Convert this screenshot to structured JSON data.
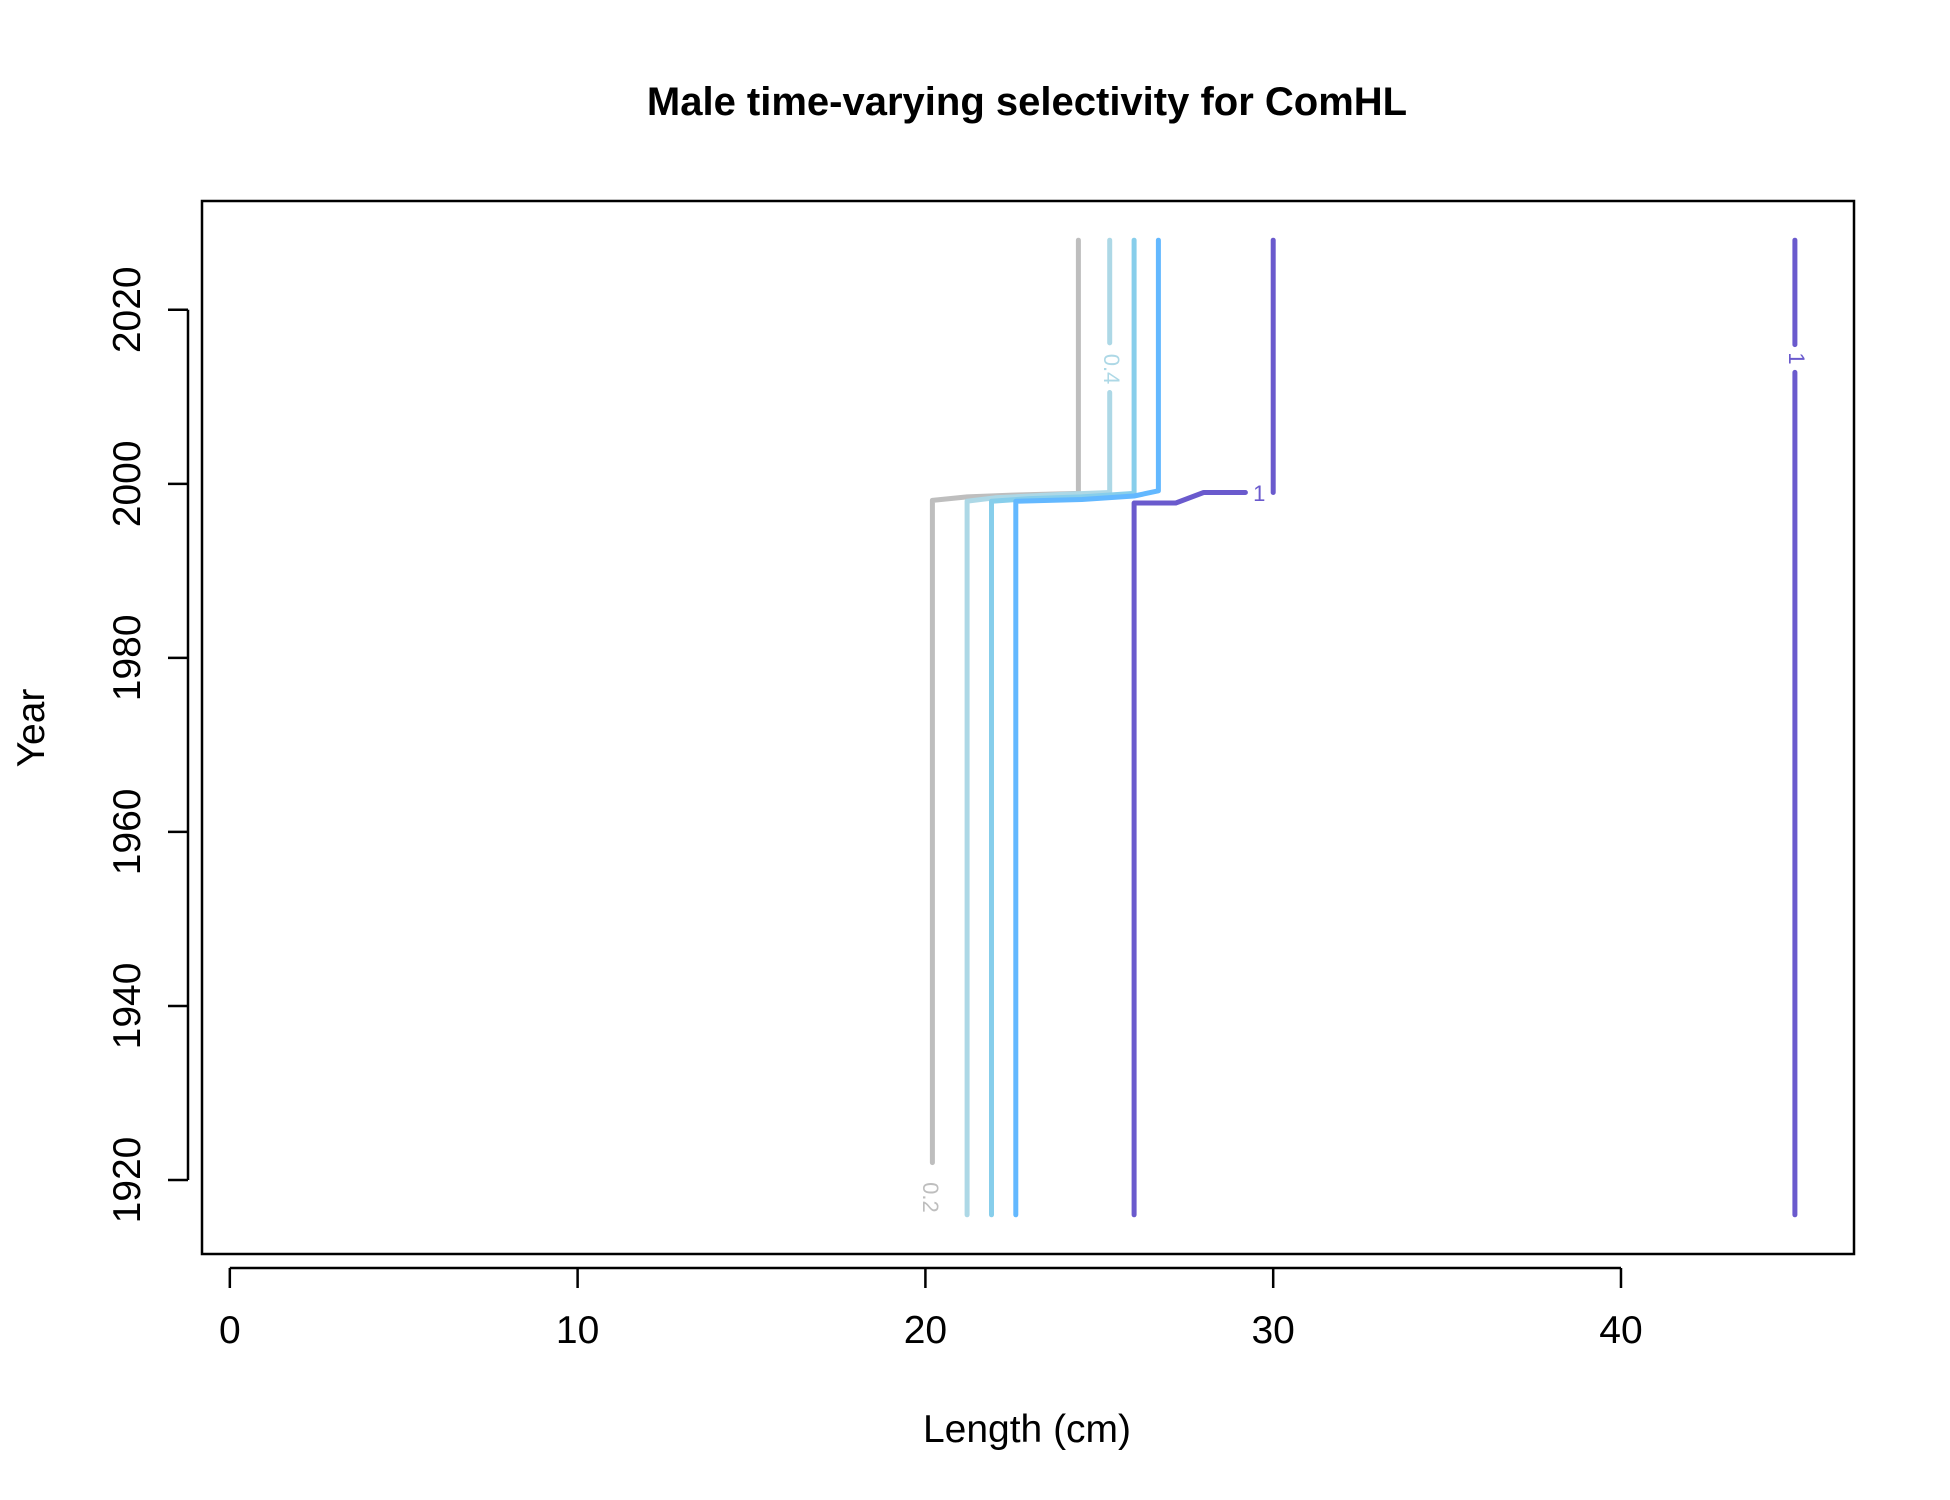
{
  "chart_data": {
    "type": "contour",
    "title": "Male time-varying selectivity for ComHL",
    "xlabel": "Length (cm)",
    "ylabel": "Year",
    "xlim": [
      -0.8,
      46.7
    ],
    "ylim": [
      1911.5,
      2032.5
    ],
    "x_ticks": [
      0,
      10,
      20,
      30,
      40
    ],
    "y_ticks": [
      1920,
      1940,
      1960,
      1980,
      2000,
      2020
    ],
    "grid": false,
    "legend": "none",
    "series": [
      {
        "level": "0.2",
        "color": "#bebebe",
        "points": [
          [
            20.2,
            1922.0
          ],
          [
            20.2,
            1998.1
          ],
          [
            21.2,
            1998.5
          ],
          [
            22.5,
            1998.7
          ],
          [
            24.4,
            1998.9
          ],
          [
            24.4,
            2028.0
          ]
        ],
        "label": {
          "text": "0.2",
          "x": 20.1,
          "y": 1918.0
        }
      },
      {
        "level": "0.4",
        "color": "#add8e6",
        "points": [
          [
            21.2,
            1916.0
          ],
          [
            21.2,
            1998.0
          ],
          [
            22.0,
            1998.4
          ],
          [
            24.0,
            1998.8
          ],
          [
            25.3,
            1999.0
          ],
          [
            25.3,
            2010.5
          ],
          "break",
          [
            25.3,
            2016.2
          ],
          [
            25.3,
            2028.0
          ]
        ],
        "label": {
          "text": "0.4",
          "x": 25.3,
          "y": 2013.2
        }
      },
      {
        "level": "",
        "color": "#87ceeb",
        "points": [
          [
            21.9,
            1916.0
          ],
          [
            21.9,
            1998.0
          ],
          [
            23.0,
            1998.3
          ],
          [
            24.5,
            1998.5
          ],
          [
            26.0,
            1998.9
          ],
          [
            26.0,
            2028.0
          ]
        ],
        "label": null
      },
      {
        "level": "",
        "color": "#63b8ff",
        "points": [
          [
            22.6,
            1916.0
          ],
          [
            22.6,
            1998.0
          ],
          [
            24.5,
            1998.2
          ],
          [
            26.0,
            1998.6
          ],
          [
            26.7,
            1999.2
          ],
          [
            26.7,
            2028.0
          ]
        ],
        "label": null
      },
      {
        "level": "1",
        "color": "#6a5acd",
        "points": [
          [
            26.0,
            1916.0
          ],
          [
            26.0,
            1997.8
          ],
          [
            27.2,
            1997.8
          ],
          [
            28.0,
            1999.0
          ],
          [
            29.2,
            1999.0
          ]
        ],
        "label": {
          "text": "1",
          "x": 29.6,
          "y": 1998.7
        }
      },
      {
        "level": "",
        "color": "#6a5acd",
        "points": [
          [
            30.0,
            1999.0
          ],
          [
            30.0,
            2028.0
          ]
        ],
        "label": null
      },
      {
        "level": "1",
        "color": "#6a5acd",
        "points": [
          [
            45.0,
            1916.0
          ],
          [
            45.0,
            2012.8
          ],
          "break",
          [
            45.0,
            2016.0
          ],
          [
            45.0,
            2028.0
          ]
        ],
        "label": {
          "text": "1",
          "x": 45.0,
          "y": 2014.4
        }
      }
    ]
  }
}
